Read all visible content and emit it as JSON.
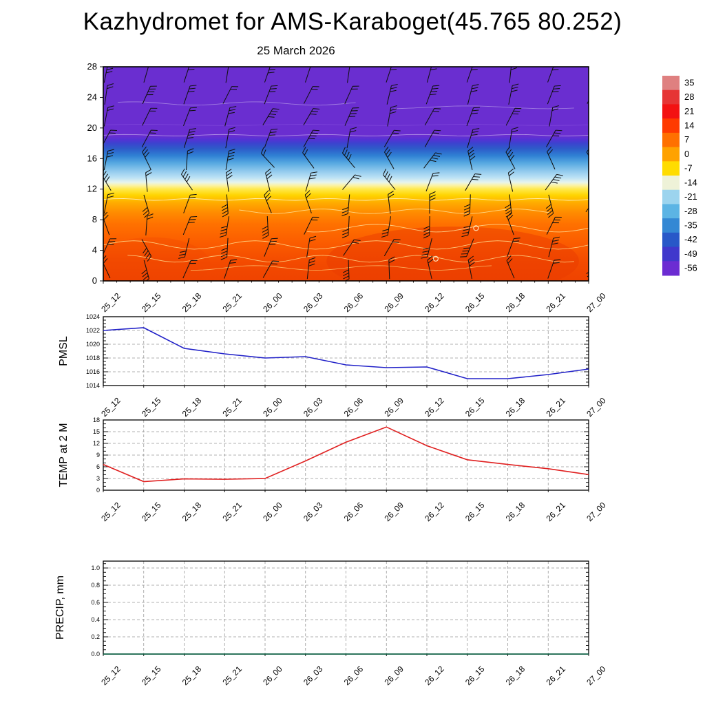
{
  "page": {
    "title": "Kazhydromet for AMS-Karaboget(45.765 80.252)"
  },
  "time_axis": {
    "labels": [
      "25_12",
      "25_15",
      "25_18",
      "25_21",
      "26_00",
      "26_03",
      "26_06",
      "26_09",
      "26_12",
      "26_15",
      "26_18",
      "26_21",
      "27_00"
    ]
  },
  "chart_data": [
    {
      "id": "time_height_section",
      "type": "heatmap",
      "title": "25 March 2026",
      "description": "Time-height temperature cross-section (shaded, deg C) with wind barbs",
      "ylim": [
        0,
        28
      ],
      "yticks": [
        0,
        4,
        8,
        12,
        16,
        20,
        24,
        28
      ],
      "ytick_labels": [
        "0",
        "4",
        "8",
        "12",
        "16",
        "20",
        "24",
        "28"
      ],
      "x_categories": [
        "25_12",
        "25_15",
        "25_18",
        "25_21",
        "26_00",
        "26_03",
        "26_06",
        "26_09",
        "26_12",
        "26_15",
        "26_18",
        "26_21",
        "27_00"
      ],
      "vertical_profile": [
        {
          "level": 28,
          "color": "#6a2ed0"
        },
        {
          "level": 19.0,
          "color": "#6a2ed0"
        },
        {
          "level": 18.5,
          "color": "#5532d4"
        },
        {
          "level": 18.0,
          "color": "#3c43cf"
        },
        {
          "level": 17.3,
          "color": "#2e5bc9"
        },
        {
          "level": 16.4,
          "color": "#2f80d3"
        },
        {
          "level": 15.4,
          "color": "#57a9e1"
        },
        {
          "level": 14.4,
          "color": "#8fc9ed"
        },
        {
          "level": 13.5,
          "color": "#bce2f5"
        },
        {
          "level": 12.9,
          "color": "#e6f4ee"
        },
        {
          "level": 12.5,
          "color": "#fbf3a8"
        },
        {
          "level": 12.0,
          "color": "#ffe94c"
        },
        {
          "level": 11.2,
          "color": "#ffd400"
        },
        {
          "level": 10.2,
          "color": "#ffab00"
        },
        {
          "level": 9.0,
          "color": "#ff8d00"
        },
        {
          "level": 7.5,
          "color": "#ff7200"
        },
        {
          "level": 5.0,
          "color": "#fb5c00"
        },
        {
          "level": 2.4,
          "color": "#f34a00"
        },
        {
          "level": 0,
          "color": "#ef4300"
        }
      ],
      "warm_patches": [
        {
          "xf": 0.72,
          "level": 2.6,
          "rxf": 0.26,
          "ry_levels": 4.5,
          "color": "#e93c00",
          "opacity": 0.5
        },
        {
          "xf": 0.1,
          "level": 2.2,
          "rxf": 0.12,
          "ry_levels": 3.5,
          "color": "#ee4600",
          "opacity": 0.3
        }
      ],
      "contour_lines": [
        {
          "level": 23.2,
          "amp": 0.22,
          "waves": 4,
          "x0": 0.03,
          "x1": 0.52,
          "color": "#cfc0ef",
          "opacity": 0.55
        },
        {
          "level": 22.7,
          "amp": 0.18,
          "waves": 3,
          "x0": 0.6,
          "x1": 0.97,
          "color": "#cfc0ef",
          "opacity": 0.5
        },
        {
          "level": 20.4,
          "amp": 0.08,
          "waves": 3,
          "x0": 0,
          "x1": 1,
          "color": "#8a55e0",
          "opacity": 0.55
        },
        {
          "level": 19.05,
          "amp": 0.1,
          "waves": 5,
          "x0": 0,
          "x1": 1,
          "color": "#d8ccf2",
          "opacity": 0.6
        },
        {
          "level": 10.65,
          "amp": 0.12,
          "waves": 7,
          "x0": 0,
          "x1": 1,
          "color": "#ffffff",
          "opacity": 0.7
        },
        {
          "level": 9.1,
          "amp": 0.3,
          "waves": 5,
          "x0": 0.28,
          "x1": 0.92,
          "color": "#ffeaa6",
          "opacity": 0.8
        },
        {
          "level": 6.9,
          "amp": 0.5,
          "waves": 4,
          "x0": 0.42,
          "x1": 1.0,
          "color": "#ffeaa6",
          "opacity": 0.8
        },
        {
          "level": 4.7,
          "amp": 0.55,
          "waves": 4,
          "x0": 0.0,
          "x1": 1.0,
          "color": "#ffdf90",
          "opacity": 0.85
        },
        {
          "level": 2.9,
          "amp": 0.45,
          "waves": 5,
          "x0": 0.05,
          "x1": 0.97,
          "color": "#ffdf90",
          "opacity": 0.8
        },
        {
          "level": 1.7,
          "amp": 0.3,
          "waves": 4,
          "x0": 0.18,
          "x1": 0.8,
          "color": "#ffd880",
          "opacity": 0.7
        }
      ],
      "contour_markers": [
        {
          "xf": 0.685,
          "level": 2.9
        },
        {
          "xf": 0.768,
          "level": 6.9
        }
      ],
      "wind_barbs": {
        "columns": 13,
        "rows": 10
      },
      "colorbar": {
        "labels": [
          "35",
          "28",
          "21",
          "14",
          "7",
          "0",
          "-7",
          "-14",
          "-21",
          "-28",
          "-35",
          "-42",
          "-49",
          "-56"
        ],
        "colors": [
          "#df8080",
          "#e63535",
          "#f31212",
          "#ff3a00",
          "#ff7000",
          "#ffa200",
          "#ffdc00",
          "#eef2d8",
          "#9cd4ee",
          "#5cb4e4",
          "#3488d4",
          "#2858c8",
          "#4038cc",
          "#6c2cd2"
        ]
      }
    },
    {
      "id": "pmsl",
      "type": "line",
      "ylabel": "PMSL",
      "line_color": "#2020c8",
      "ylim": [
        1014,
        1024
      ],
      "yticks": [
        1014,
        1016,
        1018,
        1020,
        1022,
        1024
      ],
      "ytick_labels": [
        "1014",
        "1016",
        "1018",
        "1020",
        "1022",
        "1024"
      ],
      "x": [
        "25_12",
        "25_15",
        "25_18",
        "25_21",
        "26_00",
        "26_03",
        "26_06",
        "26_09",
        "26_12",
        "26_15",
        "26_18",
        "26_21",
        "27_00"
      ],
      "values": [
        1022.0,
        1022.4,
        1019.4,
        1018.6,
        1018.0,
        1018.2,
        1017.0,
        1016.6,
        1016.7,
        1015.0,
        1015.0,
        1015.6,
        1016.4
      ]
    },
    {
      "id": "temp_2m",
      "type": "line",
      "ylabel": "TEMP at 2 M",
      "line_color": "#e02020",
      "ylim": [
        0,
        18
      ],
      "yticks": [
        0,
        3,
        6,
        9,
        12,
        15,
        18
      ],
      "ytick_labels": [
        "0",
        "3",
        "6",
        "9",
        "12",
        "15",
        "18"
      ],
      "x": [
        "25_12",
        "25_15",
        "25_18",
        "25_21",
        "26_00",
        "26_03",
        "26_06",
        "26_09",
        "26_12",
        "26_15",
        "26_18",
        "26_21",
        "27_00"
      ],
      "values": [
        6.6,
        2.2,
        2.9,
        2.8,
        3.0,
        7.5,
        12.3,
        16.2,
        11.4,
        7.8,
        6.6,
        5.5,
        4.0
      ]
    },
    {
      "id": "precip",
      "type": "line",
      "ylabel": "PRECIP, mm",
      "line_color": "#006040",
      "ylim": [
        0,
        1.08
      ],
      "yticks": [
        0.0,
        0.2,
        0.4,
        0.6,
        0.8,
        1.0
      ],
      "ytick_labels": [
        "0.0",
        "0.2",
        "0.4",
        "0.6",
        "0.8",
        "1.0"
      ],
      "x": [
        "25_12",
        "25_15",
        "25_18",
        "25_21",
        "26_00",
        "26_03",
        "26_06",
        "26_09",
        "26_12",
        "26_15",
        "26_18",
        "26_21",
        "27_00"
      ],
      "values": [
        0,
        0,
        0,
        0,
        0,
        0,
        0,
        0,
        0,
        0,
        0,
        0,
        0
      ]
    }
  ]
}
